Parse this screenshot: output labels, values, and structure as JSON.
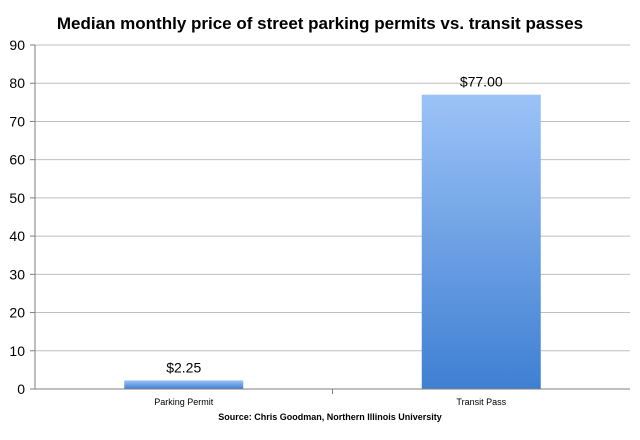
{
  "chart_data": {
    "type": "bar",
    "title": "Median monthly price of street parking permits vs. transit passes",
    "xlabel": "Source:  Chris Goodman, Northern Illinois University",
    "ylabel": "",
    "categories": [
      "Parking Permit",
      "Transit Pass"
    ],
    "values": [
      2.25,
      77.0
    ],
    "data_labels": [
      "$2.25",
      "$77.00"
    ],
    "ylim": [
      0,
      90
    ],
    "yticks": [
      0,
      10,
      20,
      30,
      40,
      50,
      60,
      70,
      80,
      90
    ],
    "grid": true,
    "legend": "none",
    "colors": {
      "bar_top": "#9cc3f7",
      "bar_bottom": "#3f7fd2",
      "grid": "#bfbfbf",
      "axis": "#7f7f7f",
      "text": "#000000"
    }
  }
}
